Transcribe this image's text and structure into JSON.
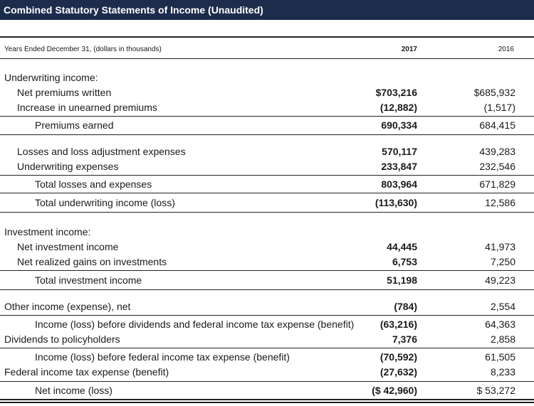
{
  "header": {
    "title": "Combined Statutory Statements of Income (Unaudited)"
  },
  "table": {
    "columns": [
      "Years Ended December 31, (dollars in thousands)",
      "2017",
      "2016"
    ],
    "rows": [
      [
        "Underwriting income:",
        null,
        null
      ],
      [
        "Net premiums written",
        "$703,216",
        "$685,932"
      ],
      [
        "Increase in unearned premiums",
        "(12,882)",
        "(1,517)"
      ],
      [
        "Premiums earned",
        "690,334",
        "684,415"
      ],
      [
        "Losses and loss adjustment expenses",
        "570,117",
        "439,283"
      ],
      [
        "Underwriting expenses",
        "233,847",
        "232,546"
      ],
      [
        "Total losses and expenses",
        "803,964",
        "671,829"
      ],
      [
        "Total underwriting income (loss)",
        "(113,630)",
        "12,586"
      ],
      [
        "Investment income:",
        null,
        null
      ],
      [
        "Net investment income",
        "44,445",
        "41,973"
      ],
      [
        "Net realized gains on investments",
        "6,753",
        "7,250"
      ],
      [
        "Total investment income",
        "51,198",
        "49,223"
      ],
      [
        "Other income (expense), net",
        "(784)",
        "2,554"
      ],
      [
        "Income (loss) before dividends and federal income tax expense (benefit)",
        "(63,216)",
        "64,363"
      ],
      [
        "Dividends to policyholders",
        "7,376",
        "2,858"
      ],
      [
        "Income (loss) before federal income tax expense (benefit)",
        "(70,592)",
        "61,505"
      ],
      [
        "Federal income tax expense (benefit)",
        "(27,632)",
        "8,233"
      ],
      [
        "Net income (loss)",
        "($ 42,960)",
        "$ 53,272"
      ]
    ]
  }
}
